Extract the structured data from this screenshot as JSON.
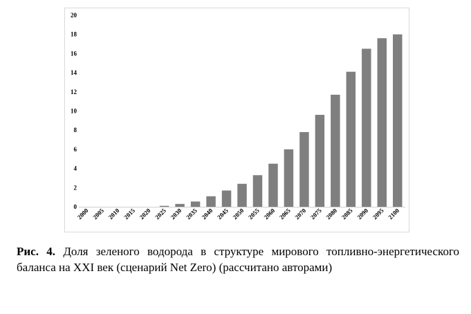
{
  "chart_data": {
    "type": "bar",
    "categories": [
      "2000",
      "2005",
      "2010",
      "2015",
      "2020",
      "2025",
      "2030",
      "2035",
      "2040",
      "2045",
      "2050",
      "2055",
      "2060",
      "2065",
      "2070",
      "2075",
      "2080",
      "2085",
      "2090",
      "2095",
      "2100"
    ],
    "values": [
      0,
      0,
      0,
      0,
      0,
      0.1,
      0.3,
      0.55,
      1.1,
      1.7,
      2.4,
      3.3,
      4.5,
      6.0,
      7.8,
      9.6,
      11.7,
      14.1,
      16.5,
      17.6,
      18.0
    ],
    "ylim": [
      0,
      20
    ],
    "yticks": [
      "0",
      "2",
      "4",
      "6",
      "8",
      "10",
      "12",
      "14",
      "16",
      "18",
      "20"
    ],
    "title": "",
    "xlabel": "",
    "ylabel": "",
    "bar_color": "#7f7f7f",
    "grid": false,
    "legend": "none"
  },
  "caption": {
    "label": "Рис. 4.",
    "text": "Доля зеленого водорода в структуре мирового топливно-энергетического баланса на XXI век (сценарий Net Zero) (рассчитано авторами)"
  }
}
